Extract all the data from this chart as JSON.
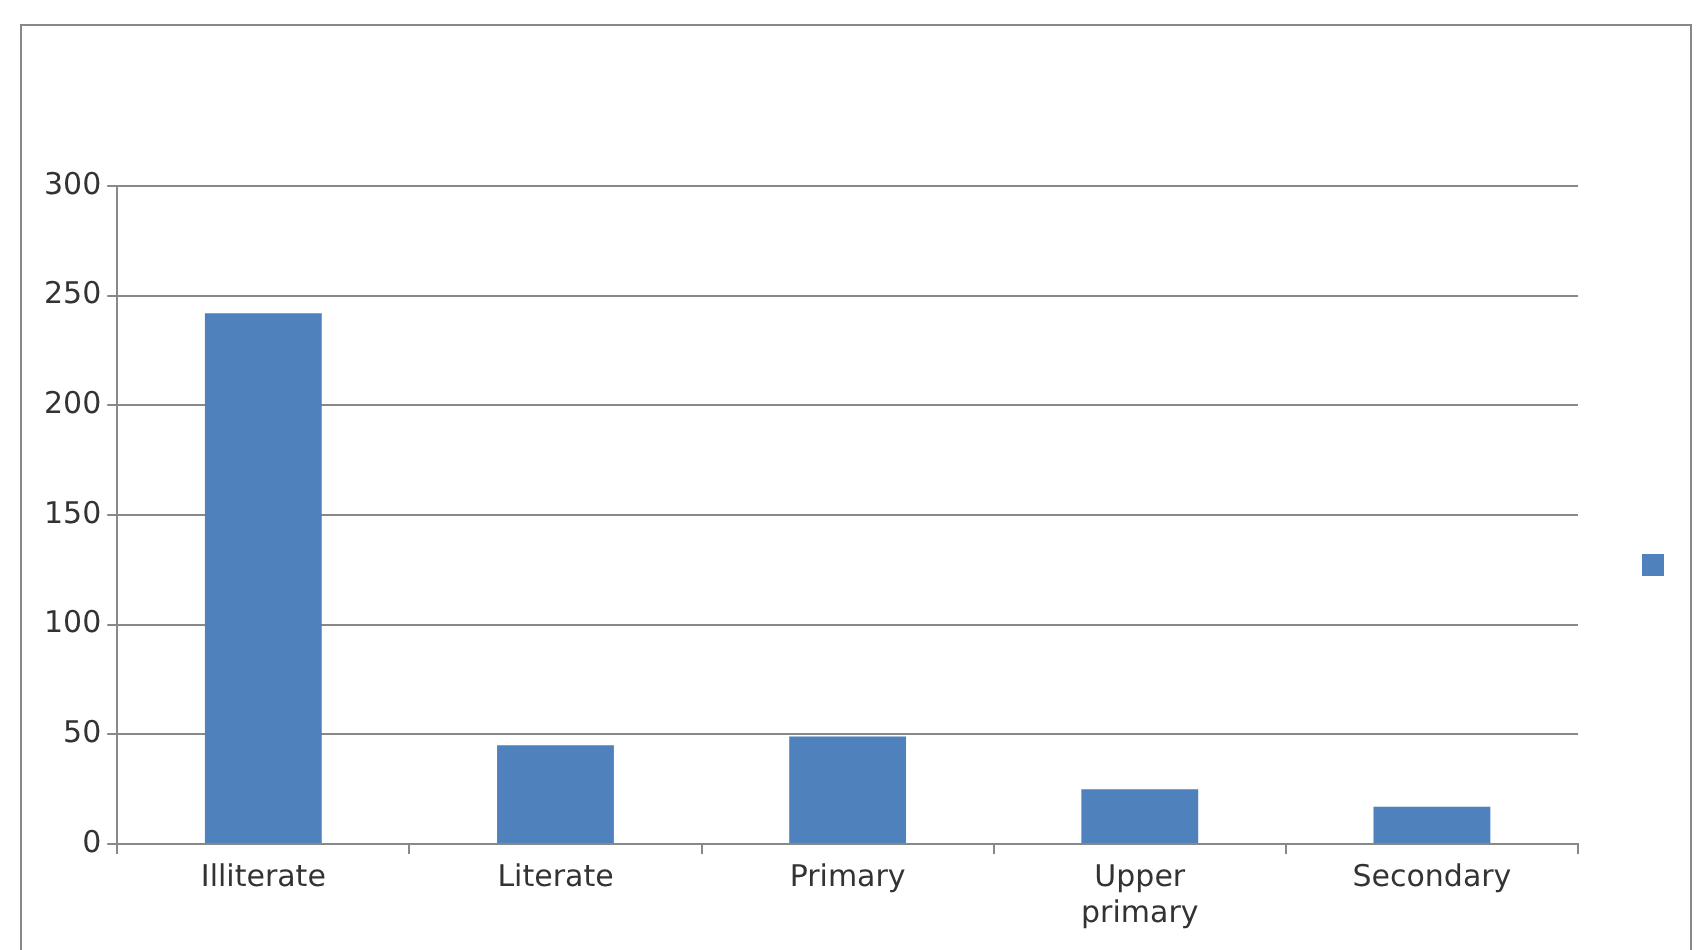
{
  "chart_data": {
    "type": "bar",
    "categories": [
      "Illiterate",
      "Literate",
      "Primary",
      "Upper primary",
      "Secondary"
    ],
    "values": [
      242,
      45,
      49,
      25,
      17
    ],
    "color": "#4f81bd",
    "ylim": [
      0,
      300
    ],
    "yticks": [
      0,
      50,
      100,
      150,
      200,
      250,
      300
    ],
    "grid": "y"
  }
}
